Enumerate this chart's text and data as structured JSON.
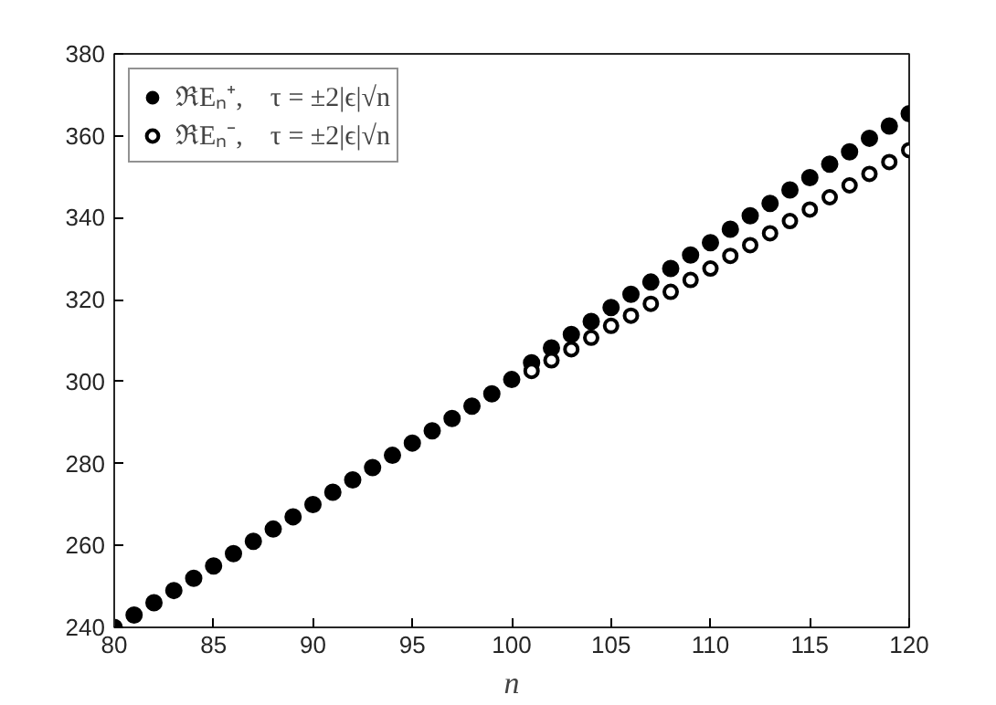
{
  "chart_data": {
    "type": "scatter",
    "xlabel": "n",
    "x": [
      80,
      81,
      82,
      83,
      84,
      85,
      86,
      87,
      88,
      89,
      90,
      91,
      92,
      93,
      94,
      95,
      96,
      97,
      98,
      99,
      100,
      101,
      102,
      103,
      104,
      105,
      106,
      107,
      108,
      109,
      110,
      111,
      112,
      113,
      114,
      115,
      116,
      117,
      118,
      119,
      120
    ],
    "series": [
      {
        "name": "ℜEₙ⁺,    τ = ±2|ϵ|√n",
        "color": "#000000",
        "marker": "circle",
        "values": [
          240,
          243,
          246,
          249,
          252,
          255,
          258,
          261,
          264,
          267,
          270,
          273,
          276,
          279,
          282,
          285,
          288,
          291,
          294,
          297,
          300.5,
          304.6,
          308.2,
          311.5,
          314.7,
          318.1,
          321.3,
          324.3,
          327.6,
          330.9,
          333.9,
          337.2,
          340.5,
          343.5,
          346.8,
          349.8,
          353.1,
          356.1,
          359.4,
          362.4,
          365.4
        ]
      },
      {
        "name": "ℜEₙ⁻,    τ = ±2|ϵ|√n",
        "color": "#000000",
        "marker": "open_circle",
        "values": [
          null,
          null,
          null,
          null,
          null,
          null,
          null,
          null,
          null,
          null,
          null,
          null,
          null,
          null,
          null,
          null,
          null,
          null,
          null,
          null,
          null,
          302.6,
          305.2,
          307.9,
          310.7,
          313.6,
          316.1,
          319.0,
          321.9,
          324.8,
          327.6,
          330.7,
          333.3,
          336.2,
          339.2,
          342.0,
          345.0,
          347.9,
          350.7,
          353.6,
          356.5
        ]
      }
    ],
    "xlim": [
      80,
      120
    ],
    "xticks": [
      80,
      85,
      90,
      95,
      100,
      105,
      110,
      115,
      120
    ],
    "ylim": [
      240,
      380
    ],
    "yticks": [
      240,
      260,
      280,
      300,
      320,
      340,
      360,
      380
    ],
    "grid": false,
    "legend": "top left"
  }
}
